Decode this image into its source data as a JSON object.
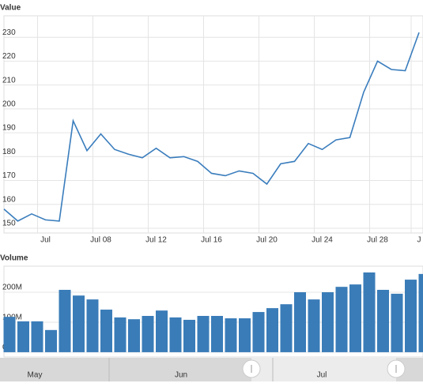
{
  "chart_data": [
    {
      "type": "line",
      "title": "Value",
      "color": "#3a7dbd",
      "grid": true,
      "categories": [
        null,
        null,
        null,
        "Jul",
        null,
        null,
        null,
        "Jul 08",
        null,
        null,
        null,
        "Jul 12",
        null,
        null,
        null,
        "Jul 16",
        null,
        null,
        null,
        "Jul 20",
        null,
        null,
        null,
        "Jul 24",
        null,
        null,
        null,
        "Jul 28",
        null,
        null,
        "J"
      ],
      "values": [
        158,
        153,
        156,
        153.5,
        153,
        195,
        182.5,
        189.5,
        183,
        181,
        179.5,
        183.5,
        179.5,
        180,
        178,
        173,
        172,
        174,
        173,
        168.5,
        177,
        178,
        185.5,
        183,
        187,
        188,
        207,
        220,
        216.5,
        216,
        232
      ],
      "ylim": [
        148,
        239
      ],
      "yticks": [
        150,
        160,
        170,
        180,
        190,
        200,
        210,
        220,
        230
      ]
    },
    {
      "type": "bar",
      "title": "Volume",
      "color": "#3a7cb8",
      "grid": true,
      "values": [
        118000000,
        103000000,
        103000000,
        74000000,
        208000000,
        189000000,
        176000000,
        142000000,
        116000000,
        110000000,
        121000000,
        139000000,
        116000000,
        108000000,
        121000000,
        121000000,
        113000000,
        113000000,
        134000000,
        147000000,
        160000000,
        200000000,
        176000000,
        200000000,
        218000000,
        226000000,
        266000000,
        208000000,
        195000000,
        242000000,
        261000000
      ],
      "ylim": [
        -16000000,
        287000000
      ],
      "yticks": [
        0,
        {
          "value": 100000000,
          "label": "100M"
        },
        {
          "value": 200000000,
          "label": "200M"
        }
      ]
    }
  ],
  "navigator": {
    "labels": [
      "May",
      "Jun",
      "Jul"
    ]
  }
}
